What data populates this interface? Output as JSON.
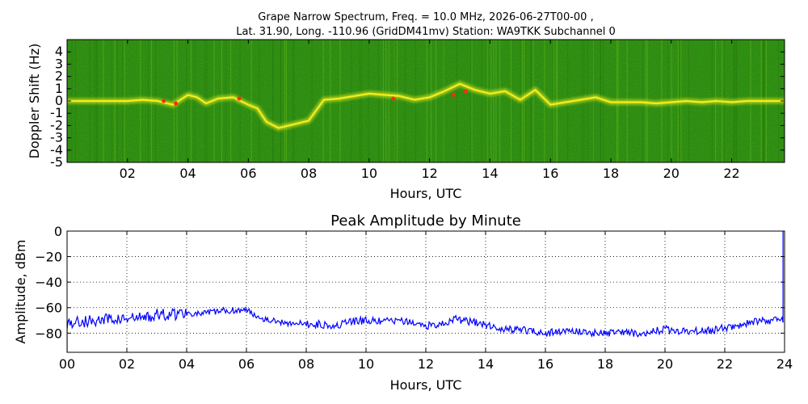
{
  "figure": {
    "title_line1": "Grape Narrow Spectrum, Freq. = 10.0 MHz, 2026-06-27T00-00 ,",
    "title_line2": "Lat.  31.90, Long. -110.96 (GridDM41mv) Station: WA9TKK Subchannel 0"
  },
  "chart_data": [
    {
      "type": "heatmap",
      "title": "",
      "xlabel": "Hours, UTC",
      "ylabel": "Doppler Shift (Hz)",
      "xlim": [
        0,
        23.75
      ],
      "ylim": [
        -5,
        5
      ],
      "x_ticks": [
        2,
        4,
        6,
        8,
        10,
        12,
        14,
        16,
        18,
        20,
        22
      ],
      "x_tick_labels": [
        "02",
        "04",
        "06",
        "08",
        "10",
        "12",
        "14",
        "16",
        "18",
        "20",
        "22"
      ],
      "y_ticks": [
        4,
        3,
        2,
        1,
        0,
        -1,
        -2,
        -3,
        -4,
        -5
      ],
      "y_tick_labels": [
        "4",
        "3",
        "2",
        "1",
        "0",
        "-1",
        "-2",
        "-3",
        "-4",
        "-5"
      ],
      "background_color": "#2f8a12",
      "signal_colors": [
        "#f2ee1c",
        "#ff2a10"
      ],
      "carrier_trace": {
        "hours": [
          0,
          0.5,
          1,
          1.5,
          2,
          2.5,
          3,
          3.5,
          4,
          4.3,
          4.6,
          5,
          5.5,
          6,
          6.3,
          6.6,
          7,
          7.5,
          8,
          8.5,
          9,
          9.5,
          10,
          10.5,
          11,
          11.5,
          12,
          12.5,
          13,
          13.5,
          14,
          14.5,
          15,
          15.5,
          16,
          16.5,
          17,
          17.5,
          18,
          18.5,
          19,
          19.5,
          20,
          20.5,
          21,
          21.5,
          22,
          22.5,
          23,
          23.75
        ],
        "shift_hz": [
          0,
          0,
          0,
          0,
          0,
          0.1,
          0,
          -0.3,
          0.5,
          0.3,
          -0.2,
          0.2,
          0.3,
          -0.3,
          -0.6,
          -1.7,
          -2.2,
          -1.9,
          -1.6,
          0.1,
          0.2,
          0.4,
          0.6,
          0.5,
          0.4,
          0.1,
          0.3,
          0.8,
          1.4,
          0.9,
          0.6,
          0.8,
          0.1,
          0.9,
          -0.3,
          -0.1,
          0.1,
          0.3,
          -0.1,
          -0.1,
          -0.1,
          -0.2,
          -0.1,
          0,
          -0.1,
          0,
          -0.1,
          0,
          0,
          0
        ]
      }
    },
    {
      "type": "line",
      "title": "Peak Amplitude by Minute",
      "xlabel": "Hours, UTC",
      "ylabel": "Amplitude, dBm",
      "xlim": [
        0,
        24
      ],
      "ylim": [
        -95,
        0
      ],
      "grid": true,
      "x_ticks": [
        0,
        2,
        4,
        6,
        8,
        10,
        12,
        14,
        16,
        18,
        20,
        22,
        24
      ],
      "x_tick_labels": [
        "00",
        "02",
        "04",
        "06",
        "08",
        "10",
        "12",
        "14",
        "16",
        "18",
        "20",
        "22",
        "24"
      ],
      "y_ticks": [
        0,
        -20,
        -40,
        -60,
        -80
      ],
      "y_tick_labels": [
        "0",
        "−20",
        "−40",
        "−60",
        "−80"
      ],
      "line_color": "#0000ff",
      "series": [
        {
          "x": [
            0,
            0.5,
            1,
            1.5,
            2,
            2.5,
            3,
            3.5,
            4,
            4.5,
            5,
            5.5,
            6,
            6.5,
            7,
            7.5,
            8,
            8.5,
            9,
            9.5,
            10,
            10.5,
            11,
            11.5,
            12,
            12.5,
            13,
            13.5,
            14,
            14.5,
            15,
            15.5,
            16,
            16.5,
            17,
            17.5,
            18,
            18.5,
            19,
            19.5,
            20,
            20.5,
            21,
            21.5,
            22,
            22.5,
            23,
            23.5,
            23.95
          ],
          "values": [
            -72,
            -71,
            -70,
            -69,
            -69,
            -68,
            -66,
            -65,
            -64,
            -65,
            -63,
            -62,
            -62,
            -68,
            -71,
            -72,
            -73,
            -73,
            -74,
            -71,
            -70,
            -71,
            -70,
            -72,
            -74,
            -73,
            -69,
            -71,
            -73,
            -77,
            -77,
            -78,
            -80,
            -79,
            -78,
            -80,
            -80,
            -79,
            -80,
            -79,
            -77,
            -78,
            -78,
            -78,
            -76,
            -74,
            -71,
            -70,
            -69
          ]
        }
      ]
    }
  ]
}
